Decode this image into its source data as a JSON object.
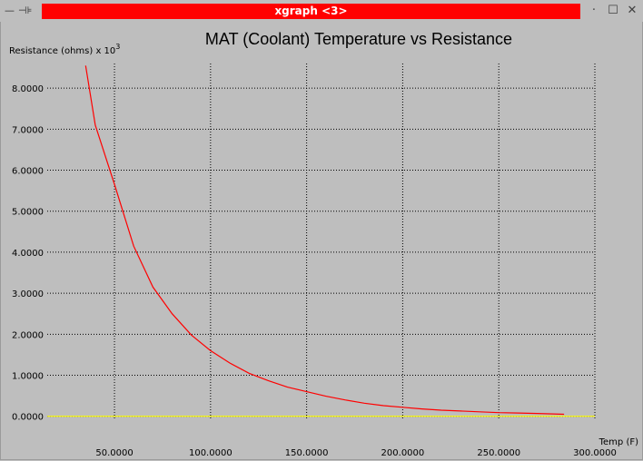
{
  "window": {
    "title": "xgraph <3>",
    "minimize_glyph": "—",
    "pin_glyph": "⊣⊧",
    "dots_glyph": "·",
    "maximize_glyph": "☐",
    "close_glyph": "✕"
  },
  "colors": {
    "background": "#bebebe",
    "title_bar_active": "#ff0000",
    "curve": "#ff0000",
    "baseline": "#ffff00",
    "grid": "#000000"
  },
  "chart_data": {
    "type": "line",
    "title": "MAT (Coolant) Temperature vs Resistance",
    "ylabel": "Resistance (ohms) x 10",
    "ylabel_exponent": "3",
    "xlabel": "Temp (F)",
    "xlim": [
      15,
      300
    ],
    "ylim": [
      -0.05,
      8.6
    ],
    "xticks": [
      50,
      100,
      150,
      200,
      250,
      300
    ],
    "xtick_labels": [
      "50.0000",
      "100.0000",
      "150.0000",
      "200.0000",
      "250.0000",
      "300.0000"
    ],
    "yticks": [
      0,
      1,
      2,
      3,
      4,
      5,
      6,
      7,
      8
    ],
    "ytick_labels": [
      "0.0000",
      "1.0000",
      "2.0000",
      "3.0000",
      "4.0000",
      "5.0000",
      "6.0000",
      "7.0000",
      "8.0000"
    ],
    "grid": true,
    "grid_style": "dotted",
    "series": [
      {
        "color": "#ff0000",
        "x": [
          35,
          40,
          50,
          60,
          70,
          80,
          90,
          100,
          110,
          120,
          130,
          140,
          150,
          160,
          170,
          180,
          190,
          200,
          210,
          220,
          230,
          240,
          250,
          260,
          270,
          284
        ],
        "y": [
          8.55,
          7.1,
          5.65,
          4.15,
          3.15,
          2.5,
          1.98,
          1.6,
          1.3,
          1.05,
          0.87,
          0.71,
          0.6,
          0.49,
          0.4,
          0.32,
          0.26,
          0.22,
          0.18,
          0.15,
          0.13,
          0.11,
          0.09,
          0.08,
          0.07,
          0.05
        ]
      },
      {
        "color": "#ffff00",
        "x": [
          15,
          300
        ],
        "y": [
          0,
          0
        ]
      }
    ]
  }
}
